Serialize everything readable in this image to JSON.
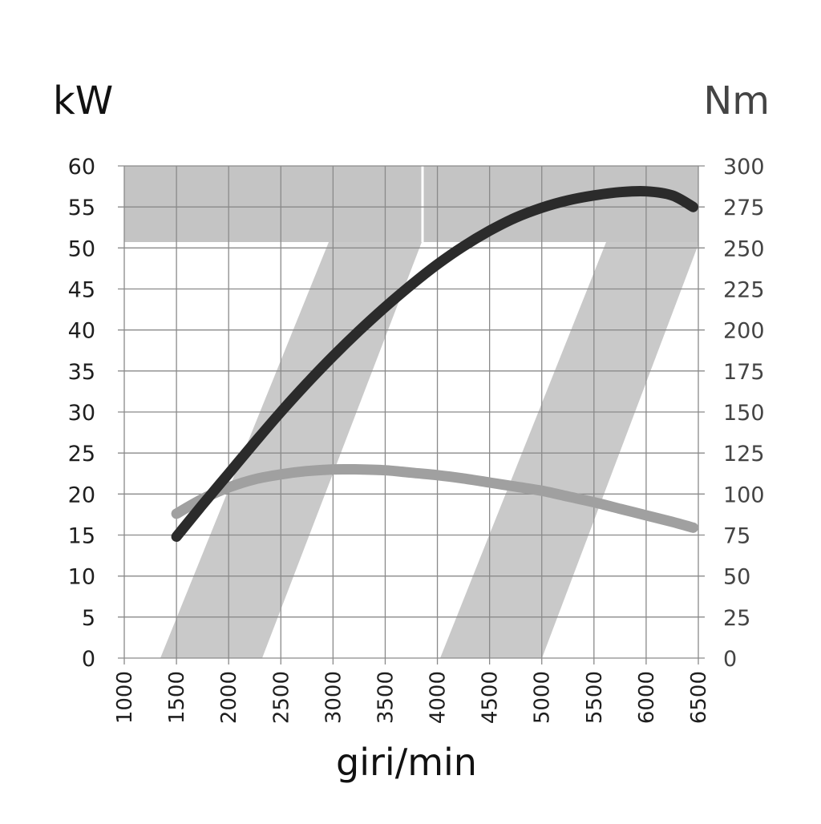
{
  "chart_data": {
    "type": "line",
    "xlabel": "giri/min",
    "y_left_label": "kW",
    "y_right_label": "Nm",
    "x_ticks": [
      "1000",
      "1500",
      "2000",
      "2500",
      "3000",
      "3500",
      "4000",
      "4500",
      "5000",
      "5500",
      "6000",
      "6500"
    ],
    "y_left_ticks": [
      "0",
      "5",
      "10",
      "15",
      "20",
      "25",
      "30",
      "35",
      "40",
      "45",
      "50",
      "55",
      "60"
    ],
    "y_right_ticks": [
      "0",
      "25",
      "50",
      "75",
      "100",
      "125",
      "150",
      "175",
      "200",
      "225",
      "250",
      "275",
      "300"
    ],
    "xlim": [
      1000,
      6500
    ],
    "ylim_left": [
      0,
      60
    ],
    "ylim_right": [
      0,
      300
    ],
    "grid": true,
    "series": [
      {
        "axis": "left",
        "color": "#2b2b2b",
        "points": [
          [
            1500,
            14.8
          ],
          [
            1750,
            18.7
          ],
          [
            2000,
            22.5
          ],
          [
            2250,
            26.3
          ],
          [
            2500,
            30.0
          ],
          [
            2750,
            33.5
          ],
          [
            3000,
            36.8
          ],
          [
            3250,
            39.9
          ],
          [
            3500,
            42.8
          ],
          [
            3750,
            45.5
          ],
          [
            4000,
            48.0
          ],
          [
            4250,
            50.2
          ],
          [
            4500,
            52.1
          ],
          [
            4750,
            53.7
          ],
          [
            5000,
            54.9
          ],
          [
            5250,
            55.8
          ],
          [
            5500,
            56.4
          ],
          [
            5750,
            56.8
          ],
          [
            6000,
            56.9
          ],
          [
            6250,
            56.4
          ],
          [
            6450,
            55.0
          ]
        ]
      },
      {
        "axis": "right",
        "color": "#a0a0a0",
        "points": [
          [
            1500,
            88
          ],
          [
            1750,
            97
          ],
          [
            2000,
            104
          ],
          [
            2250,
            109
          ],
          [
            2500,
            112
          ],
          [
            2750,
            114
          ],
          [
            3000,
            115
          ],
          [
            3250,
            115
          ],
          [
            3500,
            114.5
          ],
          [
            3750,
            113
          ],
          [
            4000,
            111.5
          ],
          [
            4250,
            109.5
          ],
          [
            4500,
            107
          ],
          [
            4750,
            104.5
          ],
          [
            5000,
            102
          ],
          [
            5250,
            98.5
          ],
          [
            5500,
            95
          ],
          [
            5750,
            91
          ],
          [
            6000,
            87
          ],
          [
            6250,
            83
          ],
          [
            6450,
            79.5
          ]
        ]
      }
    ]
  }
}
